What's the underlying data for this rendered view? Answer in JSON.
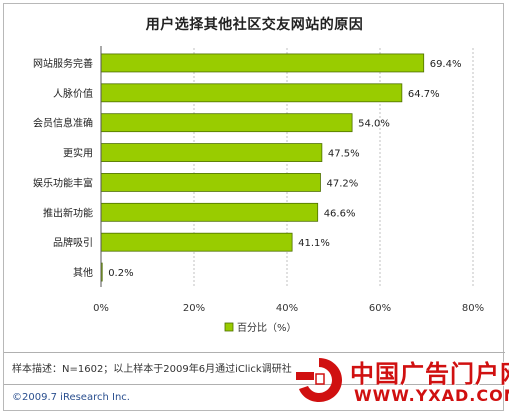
{
  "chart_data": {
    "type": "bar",
    "orientation": "horizontal",
    "title": "用户选择其他社区交友网站的原因",
    "categories": [
      "网站服务完善",
      "人脉价值",
      "会员信息准确",
      "更实用",
      "娱乐功能丰富",
      "推出新功能",
      "品牌吸引",
      "其他"
    ],
    "values": [
      69.4,
      64.7,
      54.0,
      47.5,
      47.2,
      46.6,
      41.1,
      0.2
    ],
    "value_labels": [
      "69.4%",
      "64.7%",
      "54.0%",
      "47.5%",
      "47.2%",
      "46.6%",
      "41.1%",
      "0.2%"
    ],
    "xlim": [
      0,
      80
    ],
    "x_ticks": [
      0,
      20,
      40,
      60,
      80
    ],
    "x_tick_labels": [
      "0%",
      "20%",
      "40%",
      "60%",
      "80%"
    ],
    "series": [
      {
        "name": "百分比（%）",
        "values": [
          69.4,
          64.7,
          54.0,
          47.5,
          47.2,
          46.6,
          41.1,
          0.2
        ]
      }
    ],
    "grid": true,
    "legend_position": "bottom",
    "colors": {
      "bar": "#99cc00",
      "bar_edge": "#4d6f00",
      "grid": "#c0c0c0"
    }
  },
  "footer": {
    "note": "样本描述：N=1602；以上样本于2009年6月通过iClick调研社",
    "copyright": "©2009.7 iResearch Inc."
  },
  "watermark": {
    "brand": "中国广告门户网",
    "url": "WWW.YXAD.COM"
  }
}
